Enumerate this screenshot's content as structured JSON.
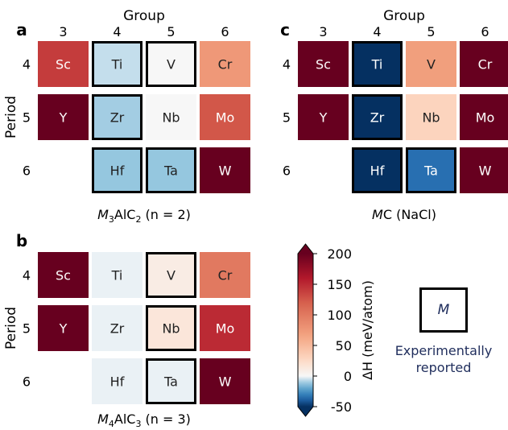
{
  "colors": {
    "experimental_label": "#1f2d5c",
    "colormap": "RdBu_r (diverging, blue = negative, white = 0, red = positive)"
  },
  "legend_key": {
    "symbol": "M",
    "caption_line1": "Experimentally",
    "caption_line2": "reported"
  },
  "chart_data": [
    {
      "type": "heatmap",
      "panel_label": "a",
      "top_label": "Group",
      "ylabel": "Period",
      "caption_prefix": "M",
      "caption_sub1": "3",
      "caption_mid": "AlC",
      "caption_sub2": "2",
      "caption_suffix": " (n = 2)",
      "columns": [
        "3",
        "4",
        "5",
        "6"
      ],
      "rows": [
        "4",
        "5",
        "6"
      ],
      "cells": [
        {
          "row": "4",
          "col": "3",
          "element": "Sc",
          "value": 140,
          "experimental": false
        },
        {
          "row": "4",
          "col": "4",
          "element": "Ti",
          "value": -5,
          "experimental": true
        },
        {
          "row": "4",
          "col": "5",
          "element": "V",
          "value": 0,
          "experimental": true
        },
        {
          "row": "4",
          "col": "6",
          "element": "Cr",
          "value": 75,
          "experimental": false
        },
        {
          "row": "5",
          "col": "3",
          "element": "Y",
          "value": 200,
          "experimental": false
        },
        {
          "row": "5",
          "col": "4",
          "element": "Zr",
          "value": -10,
          "experimental": true
        },
        {
          "row": "5",
          "col": "5",
          "element": "Nb",
          "value": 0,
          "experimental": false
        },
        {
          "row": "5",
          "col": "6",
          "element": "Mo",
          "value": 125,
          "experimental": false
        },
        {
          "row": "6",
          "col": "4",
          "element": "Hf",
          "value": -12,
          "experimental": true
        },
        {
          "row": "6",
          "col": "5",
          "element": "Ta",
          "value": -12,
          "experimental": true
        },
        {
          "row": "6",
          "col": "6",
          "element": "W",
          "value": 200,
          "experimental": false
        }
      ]
    },
    {
      "type": "heatmap",
      "panel_label": "b",
      "top_label": "",
      "ylabel": "Period",
      "caption_prefix": "M",
      "caption_sub1": "4",
      "caption_mid": "AlC",
      "caption_sub2": "3",
      "caption_suffix": " (n = 3)",
      "columns": [
        "3",
        "4",
        "5",
        "6"
      ],
      "rows": [
        "4",
        "5",
        "6"
      ],
      "cells": [
        {
          "row": "4",
          "col": "3",
          "element": "Sc",
          "value": 200,
          "experimental": false
        },
        {
          "row": "4",
          "col": "4",
          "element": "Ti",
          "value": -1,
          "experimental": false
        },
        {
          "row": "4",
          "col": "5",
          "element": "V",
          "value": 10,
          "experimental": true
        },
        {
          "row": "4",
          "col": "6",
          "element": "Cr",
          "value": 100,
          "experimental": false
        },
        {
          "row": "5",
          "col": "3",
          "element": "Y",
          "value": 200,
          "experimental": false
        },
        {
          "row": "5",
          "col": "4",
          "element": "Zr",
          "value": -1,
          "experimental": false
        },
        {
          "row": "5",
          "col": "5",
          "element": "Nb",
          "value": 15,
          "experimental": true
        },
        {
          "row": "5",
          "col": "6",
          "element": "Mo",
          "value": 150,
          "experimental": false
        },
        {
          "row": "6",
          "col": "4",
          "element": "Hf",
          "value": -1,
          "experimental": false
        },
        {
          "row": "6",
          "col": "5",
          "element": "Ta",
          "value": -1,
          "experimental": true
        },
        {
          "row": "6",
          "col": "6",
          "element": "W",
          "value": 200,
          "experimental": false
        }
      ]
    },
    {
      "type": "heatmap",
      "panel_label": "c",
      "top_label": "Group",
      "ylabel": "",
      "caption_prefix": "M",
      "caption_sub1": "",
      "caption_mid": "C",
      "caption_sub2": "",
      "caption_suffix": " (NaCl)",
      "columns": [
        "3",
        "4",
        "5",
        "6"
      ],
      "rows": [
        "4",
        "5",
        "6"
      ],
      "cells": [
        {
          "row": "4",
          "col": "3",
          "element": "Sc",
          "value": 200,
          "experimental": false
        },
        {
          "row": "4",
          "col": "4",
          "element": "Ti",
          "value": -50,
          "experimental": true
        },
        {
          "row": "4",
          "col": "5",
          "element": "V",
          "value": 70,
          "experimental": false
        },
        {
          "row": "4",
          "col": "6",
          "element": "Cr",
          "value": 200,
          "experimental": false
        },
        {
          "row": "5",
          "col": "3",
          "element": "Y",
          "value": 200,
          "experimental": false
        },
        {
          "row": "5",
          "col": "4",
          "element": "Zr",
          "value": -50,
          "experimental": true
        },
        {
          "row": "5",
          "col": "5",
          "element": "Nb",
          "value": 30,
          "experimental": false
        },
        {
          "row": "5",
          "col": "6",
          "element": "Mo",
          "value": 200,
          "experimental": false
        },
        {
          "row": "6",
          "col": "4",
          "element": "Hf",
          "value": -50,
          "experimental": true
        },
        {
          "row": "6",
          "col": "5",
          "element": "Ta",
          "value": -35,
          "experimental": true
        },
        {
          "row": "6",
          "col": "6",
          "element": "W",
          "value": 200,
          "experimental": false
        }
      ]
    },
    {
      "type": "colorbar",
      "label": "ΔH (meV/atom)",
      "range": [
        -50,
        200
      ],
      "ticks": [
        -50,
        0,
        50,
        100,
        150,
        200
      ],
      "extend": "both"
    }
  ]
}
